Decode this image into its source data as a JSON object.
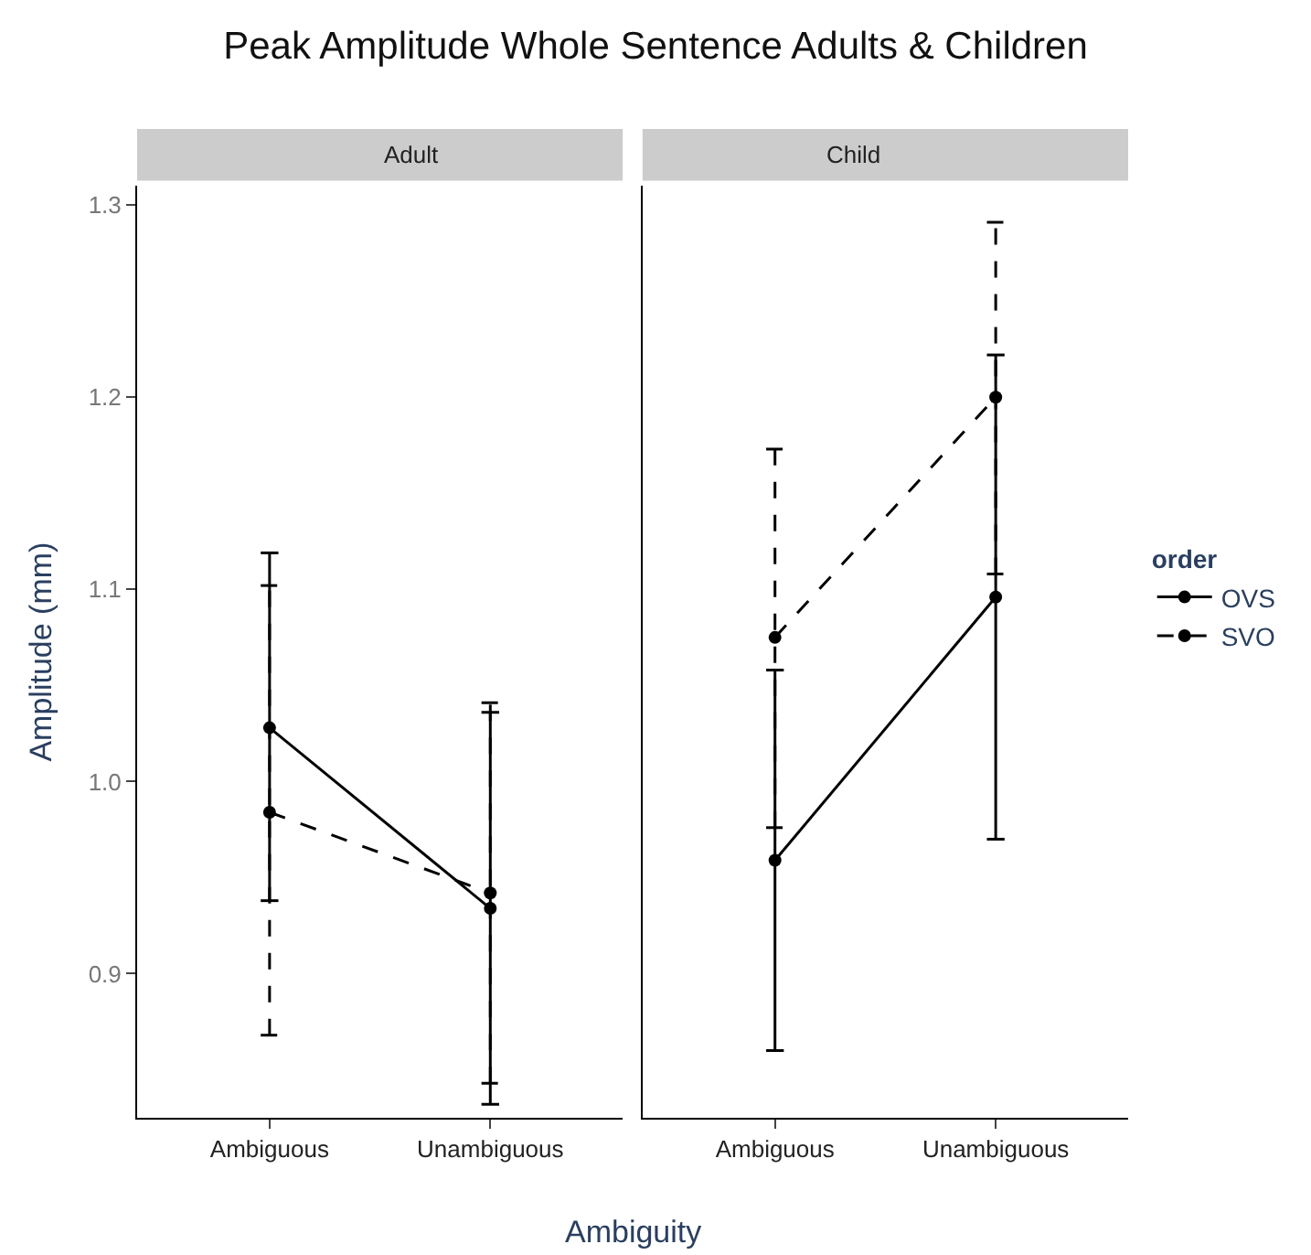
{
  "chart_data": [
    {
      "type": "line",
      "title": "Peak Amplitude Whole Sentence Adults & Children",
      "subtitle": "Adult",
      "xlabel": "Ambiguity",
      "ylabel": "Amplitude (mm)",
      "categories": [
        "Ambiguous",
        "Unambiguous"
      ],
      "series": [
        {
          "name": "OVS",
          "color": "#000000",
          "line_style": "solid",
          "values": [
            1.028,
            0.934
          ],
          "errors": [
            [
              0.938,
              1.119
            ],
            [
              0.832,
              1.036
            ]
          ]
        },
        {
          "name": "SVO",
          "color": "#000000",
          "line_style": "dashed",
          "values": [
            0.984,
            0.942
          ],
          "errors": [
            [
              0.868,
              1.102
            ],
            [
              0.843,
              1.041
            ]
          ]
        }
      ],
      "ylim": [
        0.825,
        1.31
      ],
      "yticks": [
        {
          "value": 0.9,
          "label": "0.9"
        },
        {
          "value": 1.0,
          "label": "1.0"
        },
        {
          "value": 1.1,
          "label": "1.1"
        },
        {
          "value": 1.2,
          "label": "1.2"
        },
        {
          "value": 1.3,
          "label": "1.3"
        }
      ],
      "marker": "circle",
      "legend": "right",
      "legend_title": "order"
    },
    {
      "type": "line",
      "subtitle": "Child",
      "categories": [
        "Ambiguous",
        "Unambiguous"
      ],
      "series": [
        {
          "color": "#000000",
          "line_style": "solid",
          "values": [
            0.959,
            1.096
          ],
          "errors": [
            [
              0.86,
              1.058
            ],
            [
              0.97,
              1.222
            ]
          ]
        },
        {
          "color": "#000000",
          "line_style": "dashed",
          "values": [
            1.075,
            1.2
          ],
          "errors": [
            [
              0.976,
              1.173
            ],
            [
              1.108,
              1.291
            ]
          ]
        }
      ],
      "ylim": [
        0.825,
        1.31
      ],
      "tick_labels": "x",
      "marker": "circle"
    }
  ]
}
